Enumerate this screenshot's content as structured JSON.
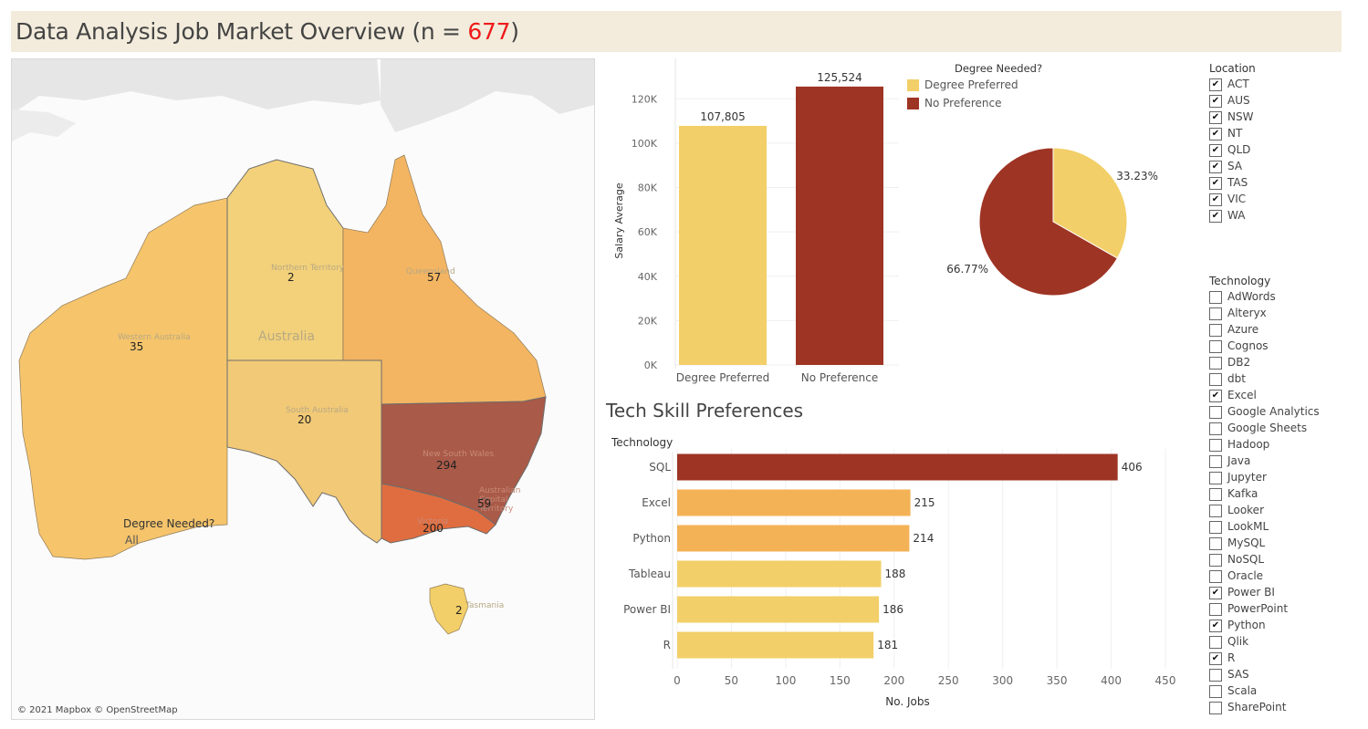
{
  "title": {
    "prefix": "Data Analysis Job Market Overview (n = ",
    "count": "677",
    "suffix": ")"
  },
  "map": {
    "attribution": "© 2021 Mapbox © OpenStreetMap",
    "country_label": "Australia",
    "regions": [
      {
        "name": "WA",
        "state_label": "Western Australia",
        "value": "35"
      },
      {
        "name": "NT",
        "state_label": "Northern Territory",
        "value": "2"
      },
      {
        "name": "QLD",
        "state_label": "Queensland",
        "value": "57"
      },
      {
        "name": "SA",
        "state_label": "South Australia",
        "value": "20"
      },
      {
        "name": "NSW",
        "state_label": "New South Wales",
        "value": "294"
      },
      {
        "name": "ACT",
        "state_label": "Australian Capital Territory",
        "value": "59"
      },
      {
        "name": "VIC",
        "state_label": "Victoria",
        "value": "200"
      },
      {
        "name": "TAS",
        "state_label": "Tasmania",
        "value": "2"
      }
    ],
    "degree_filter": {
      "title": "Degree Needed?",
      "value": "All"
    }
  },
  "colors": {
    "degree_preferred": "#f2cf68",
    "no_preference": "#9e3424",
    "mid_orange": "#f4b256",
    "title_bg": "#f3ecdc",
    "count_red": "#ee1a1a"
  },
  "legend": {
    "title": "Degree Needed?",
    "items": [
      {
        "label": "Degree Preferred",
        "color": "#f2cf68"
      },
      {
        "label": "No Preference",
        "color": "#9e3424"
      }
    ]
  },
  "tech_section_title": "Tech Skill Preferences",
  "chart_data": [
    {
      "type": "bar",
      "ylabel": "Salary Average",
      "categories": [
        "Degree Preferred",
        "No Preference"
      ],
      "values": [
        107805,
        125524
      ],
      "value_labels": [
        "107,805",
        "125,524"
      ],
      "colors": [
        "#f2cf68",
        "#9e3424"
      ],
      "ylim": [
        0,
        130000
      ],
      "yticks": [
        0,
        20000,
        40000,
        60000,
        80000,
        100000,
        120000
      ],
      "ytick_labels": [
        "0K",
        "20K",
        "40K",
        "60K",
        "80K",
        "100K",
        "120K"
      ]
    },
    {
      "type": "pie",
      "labels": [
        "Degree Preferred",
        "No Preference"
      ],
      "values": [
        33.23,
        66.77
      ],
      "value_labels": [
        "33.23%",
        "66.77%"
      ],
      "colors": [
        "#f2cf68",
        "#9e3424"
      ]
    },
    {
      "type": "bar",
      "orientation": "horizontal",
      "category_header": "Technology",
      "xlabel": "No. Jobs",
      "categories": [
        "SQL",
        "Excel",
        "Python",
        "Tableau",
        "Power BI",
        "R"
      ],
      "values": [
        406,
        215,
        214,
        188,
        186,
        181
      ],
      "colors": [
        "#9e3424",
        "#f4b256",
        "#f4b256",
        "#f2cf68",
        "#f2cf68",
        "#f2cf68"
      ],
      "xlim": [
        0,
        450
      ],
      "xticks": [
        0,
        50,
        100,
        150,
        200,
        250,
        300,
        350,
        400,
        450
      ]
    }
  ],
  "filters": {
    "location": {
      "title": "Location",
      "items": [
        {
          "label": "ACT",
          "checked": true
        },
        {
          "label": "AUS",
          "checked": true
        },
        {
          "label": "NSW",
          "checked": true
        },
        {
          "label": "NT",
          "checked": true
        },
        {
          "label": "QLD",
          "checked": true
        },
        {
          "label": "SA",
          "checked": true
        },
        {
          "label": "TAS",
          "checked": true
        },
        {
          "label": "VIC",
          "checked": true
        },
        {
          "label": "WA",
          "checked": true
        }
      ]
    },
    "technology": {
      "title": "Technology",
      "items": [
        {
          "label": "AdWords",
          "checked": false
        },
        {
          "label": "Alteryx",
          "checked": false
        },
        {
          "label": "Azure",
          "checked": false
        },
        {
          "label": "Cognos",
          "checked": false
        },
        {
          "label": "DB2",
          "checked": false
        },
        {
          "label": "dbt",
          "checked": false
        },
        {
          "label": "Excel",
          "checked": true
        },
        {
          "label": "Google Analytics",
          "checked": false
        },
        {
          "label": "Google Sheets",
          "checked": false
        },
        {
          "label": "Hadoop",
          "checked": false
        },
        {
          "label": "Java",
          "checked": false
        },
        {
          "label": "Jupyter",
          "checked": false
        },
        {
          "label": "Kafka",
          "checked": false
        },
        {
          "label": "Looker",
          "checked": false
        },
        {
          "label": "LookML",
          "checked": false
        },
        {
          "label": "MySQL",
          "checked": false
        },
        {
          "label": "NoSQL",
          "checked": false
        },
        {
          "label": "Oracle",
          "checked": false
        },
        {
          "label": "Power BI",
          "checked": true
        },
        {
          "label": "PowerPoint",
          "checked": false
        },
        {
          "label": "Python",
          "checked": true
        },
        {
          "label": "Qlik",
          "checked": false
        },
        {
          "label": "R",
          "checked": true
        },
        {
          "label": "SAS",
          "checked": false
        },
        {
          "label": "Scala",
          "checked": false
        },
        {
          "label": "SharePoint",
          "checked": false
        }
      ]
    }
  }
}
